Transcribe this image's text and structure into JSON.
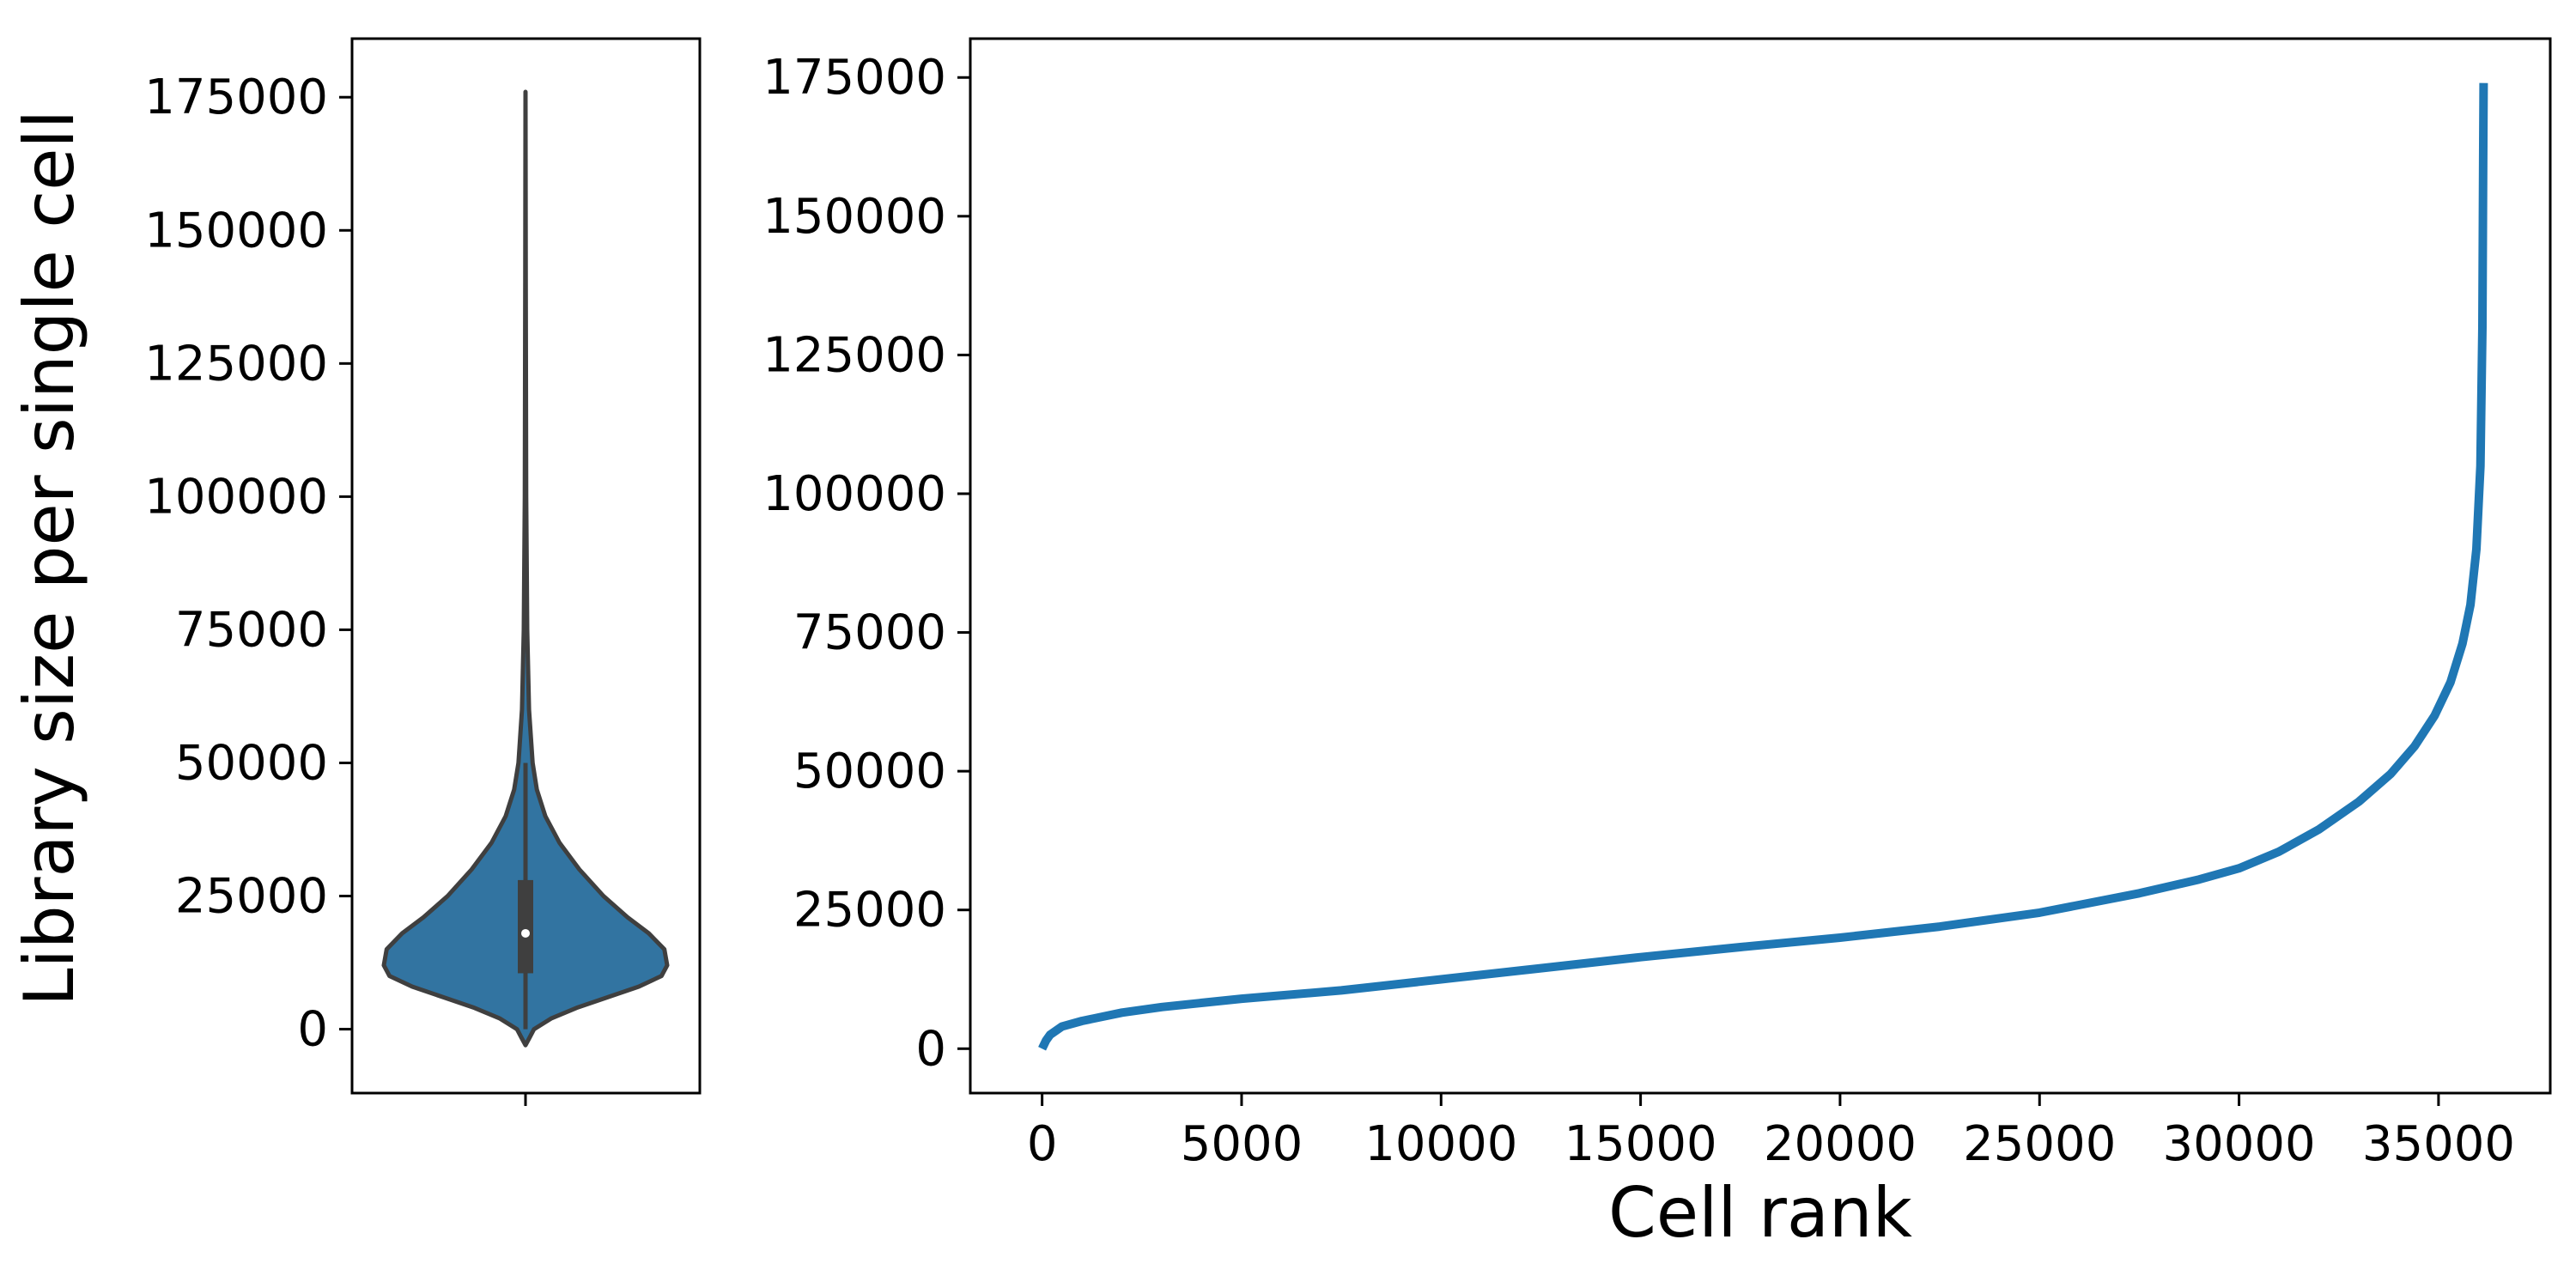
{
  "colors": {
    "violin_fill": "#3274a1",
    "violin_edge": "#3f3f3f",
    "line": "#1f77b4",
    "box": "#3f3f3f",
    "median": "#ffffff",
    "frame": "#000000"
  },
  "chart_data": [
    {
      "type": "violin",
      "title": "",
      "xlabel": "",
      "ylabel": "Library size per single cell",
      "ylim": [
        -12000,
        186000
      ],
      "yticks": [
        0,
        25000,
        50000,
        75000,
        100000,
        125000,
        150000,
        175000
      ],
      "ytick_labels": [
        "0",
        "25000",
        "50000",
        "75000",
        "100000",
        "125000",
        "150000",
        "175000"
      ],
      "grid": false,
      "summary": {
        "min": 0,
        "q1": 10500,
        "median": 18000,
        "q3": 28000,
        "whisker_high": 50000,
        "max": 176000
      },
      "density_profile": [
        {
          "y": -3000,
          "w": 0.0
        },
        {
          "y": -1500,
          "w": 0.03
        },
        {
          "y": 0,
          "w": 0.06
        },
        {
          "y": 2000,
          "w": 0.18
        },
        {
          "y": 4000,
          "w": 0.36
        },
        {
          "y": 6000,
          "w": 0.58
        },
        {
          "y": 8000,
          "w": 0.8
        },
        {
          "y": 10000,
          "w": 0.96
        },
        {
          "y": 12000,
          "w": 1.0
        },
        {
          "y": 15000,
          "w": 0.98
        },
        {
          "y": 18000,
          "w": 0.87
        },
        {
          "y": 21000,
          "w": 0.72
        },
        {
          "y": 25000,
          "w": 0.55
        },
        {
          "y": 30000,
          "w": 0.38
        },
        {
          "y": 35000,
          "w": 0.24
        },
        {
          "y": 40000,
          "w": 0.14
        },
        {
          "y": 45000,
          "w": 0.08
        },
        {
          "y": 50000,
          "w": 0.05
        },
        {
          "y": 60000,
          "w": 0.025
        },
        {
          "y": 75000,
          "w": 0.012
        },
        {
          "y": 100000,
          "w": 0.005
        },
        {
          "y": 140000,
          "w": 0.002
        },
        {
          "y": 176000,
          "w": 0.0
        }
      ]
    },
    {
      "type": "line",
      "title": "",
      "xlabel": "Cell rank",
      "ylabel": "",
      "xlim": [
        -1800,
        37800
      ],
      "ylim": [
        -8000,
        182000
      ],
      "xticks": [
        0,
        5000,
        10000,
        15000,
        20000,
        25000,
        30000,
        35000
      ],
      "xtick_labels": [
        "0",
        "5000",
        "10000",
        "15000",
        "20000",
        "25000",
        "30000",
        "35000"
      ],
      "yticks": [
        0,
        25000,
        50000,
        75000,
        100000,
        125000,
        150000,
        175000
      ],
      "ytick_labels": [
        "0",
        "25000",
        "50000",
        "75000",
        "100000",
        "125000",
        "150000",
        "175000"
      ],
      "grid": false,
      "series": [
        {
          "x": [
            0,
            100,
            200,
            500,
            1000,
            2000,
            3000,
            5000,
            7500,
            10000,
            12500,
            15000,
            17500,
            20000,
            22500,
            25000,
            27500,
            29000,
            30000,
            31000,
            32000,
            33000,
            33800,
            34400,
            34900,
            35300,
            35600,
            35800,
            35950,
            36050,
            36100,
            36120,
            36130
          ],
          "y": [
            0,
            1500,
            2500,
            4000,
            5000,
            6500,
            7500,
            9000,
            10500,
            12500,
            14500,
            16500,
            18300,
            20000,
            22000,
            24500,
            28000,
            30500,
            32500,
            35500,
            39500,
            44500,
            49500,
            54500,
            60000,
            66000,
            73000,
            80000,
            90000,
            105000,
            130000,
            160000,
            174000
          ]
        }
      ]
    }
  ]
}
